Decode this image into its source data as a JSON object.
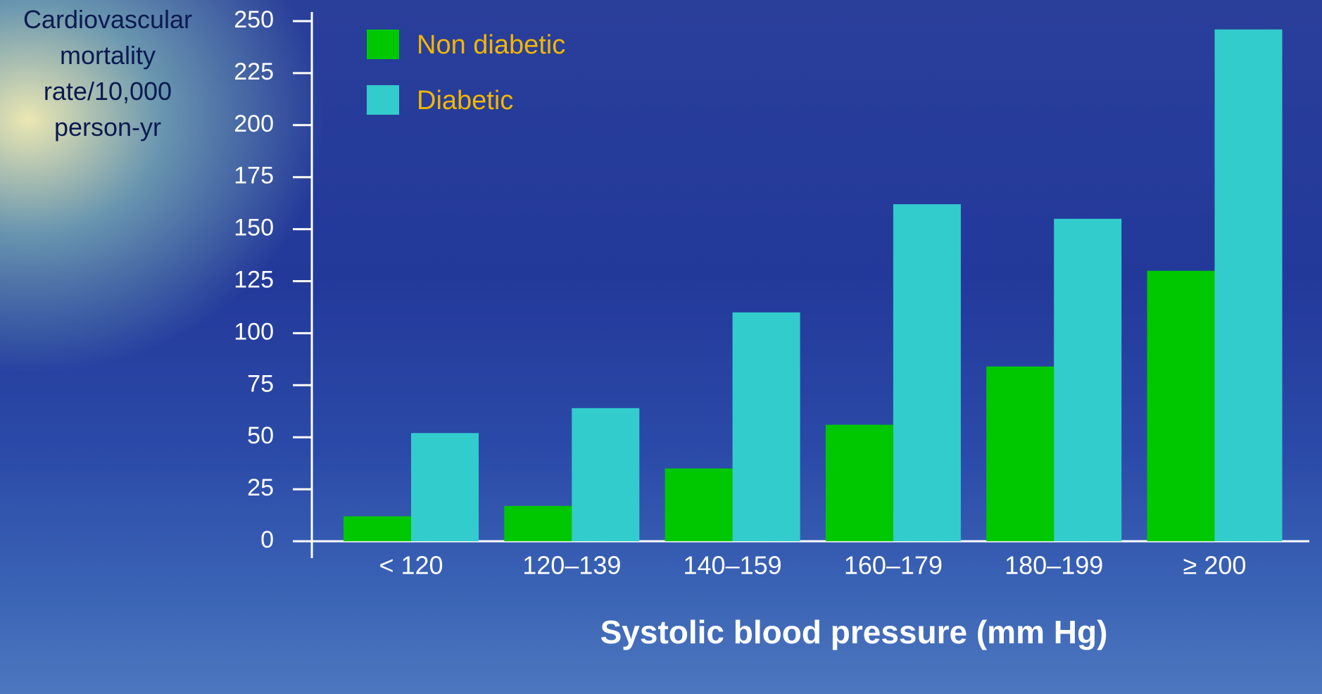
{
  "chart_data": {
    "type": "bar",
    "ylabel": "Cardiovascular mortality rate/10,000 person-yr",
    "xlabel": "Systolic blood pressure (mm Hg)",
    "categories": [
      "< 120",
      "120–139",
      "140–159",
      "160–179",
      "180–199",
      "≥ 200"
    ],
    "series": [
      {
        "name": "Non diabetic",
        "color": "#00c800",
        "values": [
          12,
          17,
          35,
          56,
          84,
          130
        ]
      },
      {
        "name": "Diabetic",
        "color": "#33cccc",
        "values": [
          52,
          64,
          110,
          162,
          155,
          246
        ]
      }
    ],
    "ylim": [
      0,
      250
    ],
    "yticks": [
      0,
      25,
      50,
      75,
      100,
      125,
      150,
      175,
      200,
      225,
      250
    ],
    "legend": "upper left"
  }
}
